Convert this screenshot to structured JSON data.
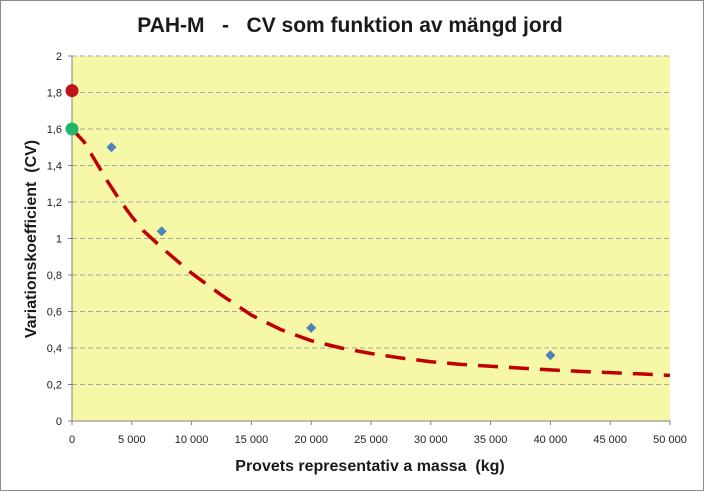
{
  "chart_data": {
    "type": "scatter",
    "title": "PAH-M   -   CV som funktion av mängd jord",
    "xlabel": "Provets representativ a massa  (kg)",
    "ylabel": "Variationskoefficient  (CV)",
    "xlim": [
      0,
      50000
    ],
    "ylim": [
      0,
      2
    ],
    "x_ticks": [
      0,
      5000,
      10000,
      15000,
      20000,
      25000,
      30000,
      35000,
      40000,
      45000,
      50000
    ],
    "x_tick_labels": [
      "0",
      "5 000",
      "10 000",
      "15 000",
      "20 000",
      "25 000",
      "30 000",
      "35 000",
      "40 000",
      "45 000",
      "50 000"
    ],
    "y_ticks": [
      0,
      0.2,
      0.4,
      0.6,
      0.8,
      1,
      1.2,
      1.4,
      1.6,
      1.8,
      2
    ],
    "y_tick_labels": [
      "0",
      "0,2",
      "0,4",
      "0,6",
      "0,8",
      "1",
      "1,2",
      "1,4",
      "1,6",
      "1,8",
      "2"
    ],
    "grid": true,
    "legend": "none",
    "colors": {
      "plot_background": "#f7f7a8",
      "gridline": "#a6a6a6",
      "diamond_marker": "#4f81bd",
      "fit_curve": "#c00000",
      "red_point": "#c0141c",
      "green_point": "#1fb56b"
    },
    "series": [
      {
        "marker": "diamond",
        "points": [
          {
            "x": 3300,
            "y": 1.5
          },
          {
            "x": 7500,
            "y": 1.04
          },
          {
            "x": 20000,
            "y": 0.51
          },
          {
            "x": 40000,
            "y": 0.36
          }
        ]
      },
      {
        "marker": "circle",
        "color": "red",
        "points": [
          {
            "x": 0,
            "y": 1.81
          }
        ]
      },
      {
        "marker": "circle",
        "color": "green",
        "points": [
          {
            "x": 0,
            "y": 1.6
          }
        ]
      },
      {
        "style": "dashed-line",
        "points": [
          {
            "x": 0,
            "y": 1.6
          },
          {
            "x": 1000,
            "y": 1.53
          },
          {
            "x": 2000,
            "y": 1.42
          },
          {
            "x": 3000,
            "y": 1.31
          },
          {
            "x": 4000,
            "y": 1.21
          },
          {
            "x": 5000,
            "y": 1.12
          },
          {
            "x": 6000,
            "y": 1.04
          },
          {
            "x": 7500,
            "y": 0.95
          },
          {
            "x": 10000,
            "y": 0.81
          },
          {
            "x": 12500,
            "y": 0.69
          },
          {
            "x": 15000,
            "y": 0.58
          },
          {
            "x": 17500,
            "y": 0.5
          },
          {
            "x": 20000,
            "y": 0.44
          },
          {
            "x": 22500,
            "y": 0.4
          },
          {
            "x": 25000,
            "y": 0.37
          },
          {
            "x": 27500,
            "y": 0.345
          },
          {
            "x": 30000,
            "y": 0.325
          },
          {
            "x": 32500,
            "y": 0.31
          },
          {
            "x": 35000,
            "y": 0.3
          },
          {
            "x": 37500,
            "y": 0.29
          },
          {
            "x": 40000,
            "y": 0.28
          },
          {
            "x": 42500,
            "y": 0.272
          },
          {
            "x": 45000,
            "y": 0.265
          },
          {
            "x": 47500,
            "y": 0.258
          },
          {
            "x": 50000,
            "y": 0.25
          }
        ]
      }
    ]
  }
}
